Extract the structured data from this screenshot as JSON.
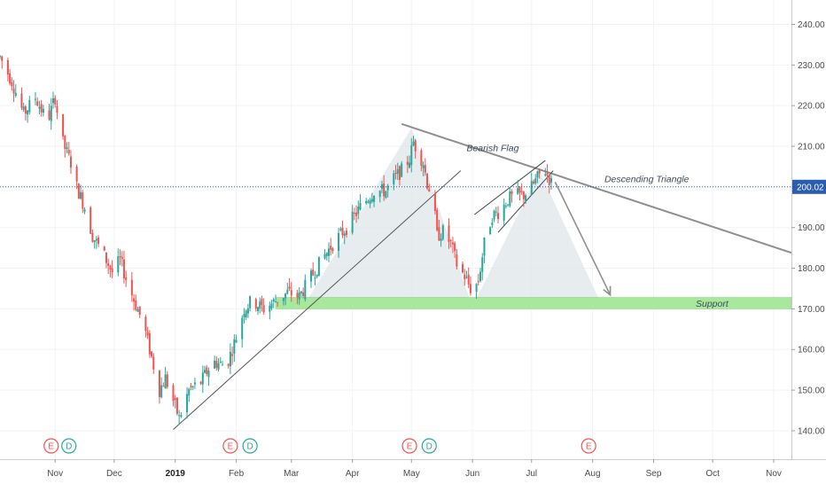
{
  "chart_data": {
    "type": "candlestick",
    "y_axis": {
      "ticks": [
        140,
        150,
        160,
        170,
        180,
        190,
        200,
        210,
        220,
        230,
        240
      ],
      "tick_labels": [
        "140.00",
        "150.00",
        "160.00",
        "170.00",
        "180.00",
        "190.00",
        "200.00",
        "210.00",
        "220.00",
        "230.00",
        "240.00"
      ],
      "range": [
        133,
        246
      ]
    },
    "x_axis": {
      "ticks": [
        {
          "label": "Nov",
          "date": "2018-11-01"
        },
        {
          "label": "Dec",
          "date": "2018-12-01"
        },
        {
          "label": "2019",
          "date": "2019-01-01",
          "emphasis": true
        },
        {
          "label": "Feb",
          "date": "2019-02-01"
        },
        {
          "label": "Mar",
          "date": "2019-03-01"
        },
        {
          "label": "Apr",
          "date": "2019-04-01"
        },
        {
          "label": "May",
          "date": "2019-05-01"
        },
        {
          "label": "Jun",
          "date": "2019-06-01"
        },
        {
          "label": "Jul",
          "date": "2019-07-01"
        },
        {
          "label": "Aug",
          "date": "2019-08-01"
        },
        {
          "label": "Sep",
          "date": "2019-09-01"
        },
        {
          "label": "Oct",
          "date": "2019-10-01"
        },
        {
          "label": "Nov",
          "date": "2019-11-01"
        }
      ],
      "range": [
        "2018-10-04",
        "2019-11-10"
      ]
    },
    "last_price": {
      "value": 200.02,
      "label": "200.02"
    },
    "price_path": [
      [
        "2018-10-04",
        232
      ],
      [
        "2018-10-10",
        226
      ],
      [
        "2018-10-16",
        218
      ],
      [
        "2018-10-22",
        222
      ],
      [
        "2018-10-28",
        216
      ],
      [
        "2018-11-01",
        222
      ],
      [
        "2018-11-04",
        212
      ],
      [
        "2018-11-09",
        206
      ],
      [
        "2018-11-12",
        200
      ],
      [
        "2018-11-16",
        195
      ],
      [
        "2018-11-20",
        188
      ],
      [
        "2018-11-26",
        183
      ],
      [
        "2018-11-30",
        179
      ],
      [
        "2018-12-04",
        182
      ],
      [
        "2018-12-08",
        176
      ],
      [
        "2018-12-12",
        171
      ],
      [
        "2018-12-16",
        166
      ],
      [
        "2018-12-20",
        158
      ],
      [
        "2018-12-24",
        150
      ],
      [
        "2018-12-27",
        153
      ],
      [
        "2019-01-01",
        146
      ],
      [
        "2019-01-03",
        143
      ],
      [
        "2019-01-08",
        150
      ],
      [
        "2019-01-14",
        152
      ],
      [
        "2019-01-20",
        157
      ],
      [
        "2019-01-27",
        156
      ],
      [
        "2019-02-01",
        163
      ],
      [
        "2019-02-05",
        170
      ],
      [
        "2019-02-09",
        172
      ],
      [
        "2019-02-15",
        170
      ],
      [
        "2019-02-21",
        172
      ],
      [
        "2019-02-27",
        174
      ],
      [
        "2019-03-05",
        173
      ],
      [
        "2019-03-10",
        177
      ],
      [
        "2019-03-15",
        181
      ],
      [
        "2019-03-22",
        186
      ],
      [
        "2019-03-29",
        190
      ],
      [
        "2019-04-05",
        195
      ],
      [
        "2019-04-12",
        199
      ],
      [
        "2019-04-18",
        199
      ],
      [
        "2019-04-22",
        202
      ],
      [
        "2019-04-26",
        204
      ],
      [
        "2019-04-30",
        207
      ],
      [
        "2019-05-02",
        211
      ],
      [
        "2019-05-04",
        209
      ],
      [
        "2019-05-07",
        206
      ],
      [
        "2019-05-09",
        201
      ],
      [
        "2019-05-12",
        197
      ],
      [
        "2019-05-14",
        188
      ],
      [
        "2019-05-17",
        189
      ],
      [
        "2019-05-21",
        186
      ],
      [
        "2019-05-24",
        181
      ],
      [
        "2019-05-28",
        178
      ],
      [
        "2019-06-01",
        174
      ],
      [
        "2019-06-04",
        177
      ],
      [
        "2019-06-07",
        186
      ],
      [
        "2019-06-11",
        193
      ],
      [
        "2019-06-15",
        194
      ],
      [
        "2019-06-19",
        197
      ],
      [
        "2019-06-23",
        198
      ],
      [
        "2019-06-27",
        198
      ],
      [
        "2019-07-01",
        200
      ],
      [
        "2019-07-05",
        203
      ],
      [
        "2019-07-08",
        204
      ],
      [
        "2019-07-11",
        201
      ]
    ],
    "earnings_markers": [
      {
        "date": "2018-10-30",
        "label": "E"
      },
      {
        "date": "2019-01-29",
        "label": "E"
      },
      {
        "date": "2019-04-30",
        "label": "E"
      },
      {
        "date": "2019-07-30",
        "label": "E"
      }
    ],
    "dividend_markers": [
      {
        "date": "2018-11-08",
        "label": "D"
      },
      {
        "date": "2019-02-08",
        "label": "D"
      },
      {
        "date": "2019-05-10",
        "label": "D"
      }
    ],
    "support": {
      "from": "2019-02-21",
      "low": 170,
      "high": 172.8,
      "label": "Support"
    },
    "descending_triangle": {
      "from": [
        "2019-04-26",
        215.5
      ],
      "to": [
        "2019-11-10",
        183.8
      ],
      "label": "Descending Triangle",
      "label_at": [
        "2019-08-07",
        201.2
      ]
    },
    "bearish_flag": {
      "label": "Bearish Flag",
      "label_at": [
        "2019-05-29",
        208.8
      ],
      "upper": [
        [
          "2019-06-02",
          193.2
        ],
        [
          "2019-07-08",
          206.5
        ]
      ],
      "lower": [
        [
          "2019-06-14",
          188.8
        ],
        [
          "2019-07-12",
          204
        ]
      ]
    },
    "uptrend_line": {
      "from": [
        "2018-12-31",
        140.3
      ],
      "to": [
        "2019-05-26",
        204
      ]
    },
    "shaded_peaks": [
      [
        [
          "2019-03-07",
          170.5
        ],
        [
          "2019-05-01",
          214.5
        ],
        [
          "2019-06-01",
          170.5
        ]
      ],
      [
        [
          "2019-06-01",
          170.5
        ],
        [
          "2019-07-05",
          204
        ],
        [
          "2019-08-06",
          170.5
        ]
      ]
    ],
    "projection_arrow": {
      "from": [
        "2019-07-13",
        201.2
      ],
      "to": [
        "2019-08-10",
        173.4
      ]
    },
    "colors": {
      "up": "#26a69a",
      "down": "#ef5350",
      "support_fill": "#a8e89c",
      "support_stroke": "#78cf6c",
      "shade_fill": "#dfe6ea",
      "trend_line": "#8f8f8f",
      "price_line": "#2a5db0",
      "price_tag": "#2a5db0",
      "earnings": "#ef5350",
      "dividend": "#26a69a"
    }
  }
}
